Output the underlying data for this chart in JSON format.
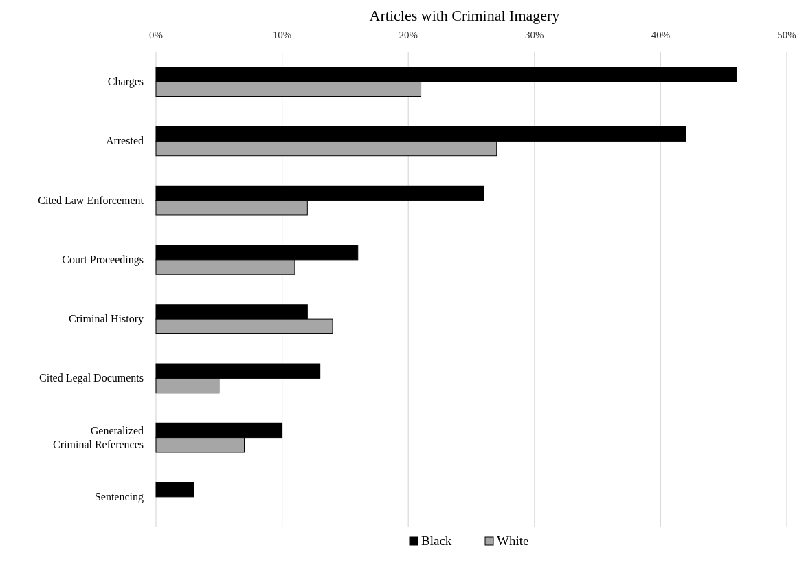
{
  "chart_data": {
    "type": "bar",
    "orientation": "horizontal",
    "title": "Articles with Criminal Imagery",
    "categories": [
      "Charges",
      "Arrested",
      "Cited Law Enforcement",
      "Court Proceedings",
      "Criminal History",
      "Cited Legal Documents",
      "Generalized Criminal References",
      "Sentencing"
    ],
    "series": [
      {
        "name": "Black",
        "color": "#000000",
        "values": [
          46,
          42,
          26,
          16,
          12,
          13,
          10,
          3
        ]
      },
      {
        "name": "White",
        "color": "#a6a6a6",
        "values": [
          21,
          27,
          12,
          11,
          14,
          5,
          7,
          0
        ]
      }
    ],
    "xlim": [
      0,
      50
    ],
    "xticks": [
      {
        "value": 0,
        "label": "0%"
      },
      {
        "value": 10,
        "label": "10%"
      },
      {
        "value": 20,
        "label": "20%"
      },
      {
        "value": 30,
        "label": "30%"
      },
      {
        "value": 40,
        "label": "40%"
      },
      {
        "value": 50,
        "label": "50%"
      }
    ],
    "grid": "x",
    "legend": "bottom"
  }
}
